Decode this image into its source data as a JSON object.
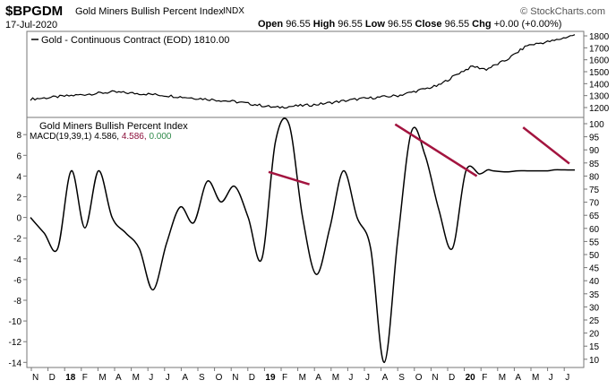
{
  "header": {
    "symbol": "$BPGDM",
    "title": "Gold Miners Bullish Percent Index",
    "exchange": "INDX",
    "date": "17-Jul-2020",
    "source": "© StockCharts.com",
    "open_label": "Open",
    "open": "96.55",
    "high_label": "High",
    "high": "96.55",
    "low_label": "Low",
    "low": "96.55",
    "close_label": "Close",
    "close": "96.55",
    "chg_label": "Chg",
    "chg": "+0.00 (+0.00%)"
  },
  "chart_data": [
    {
      "type": "line",
      "panel": "top",
      "legend": "Gold - Continuous Contract (EOD) 1810.00",
      "legend_placement": "top-left",
      "y_axis_side": "right",
      "ylim": [
        1150,
        1850
      ],
      "yticks": [
        1200,
        1300,
        1400,
        1500,
        1600,
        1700,
        1800
      ],
      "grid": false,
      "x": [
        0,
        3,
        6,
        9,
        12,
        15,
        18,
        21,
        24,
        27,
        30,
        31.5,
        32.5,
        33.5,
        35,
        36.5,
        38.5,
        40
      ],
      "values": [
        1270,
        1300,
        1330,
        1310,
        1280,
        1250,
        1200,
        1225,
        1270,
        1300,
        1385,
        1490,
        1545,
        1520,
        1600,
        1720,
        1760,
        1810
      ],
      "line_color": "#000000"
    },
    {
      "type": "line",
      "panel": "bottom",
      "legend_title": "Gold Miners Bullish Percent Index",
      "legend": "MACD(19,39,1) 4.586, 4.586, 0.000",
      "macd_label": "MACD(19,39,1) 4.586,",
      "signal_value": "4.586,",
      "hist_value": "0.000",
      "macd_color": "#000000",
      "signal_color": "#8b0e3a",
      "hist_color": "#2f8a4a",
      "legend_placement": "top-left",
      "left_axis": {
        "ylim": [
          -15,
          9
        ],
        "ticks": [
          8,
          6,
          4,
          2,
          0,
          -2,
          -4,
          -6,
          -8,
          -10,
          -12,
          -14
        ]
      },
      "right_axis": {
        "ylim": [
          5,
          105
        ],
        "ticks": [
          100,
          95,
          90,
          85,
          80,
          75,
          70,
          65,
          60,
          55,
          50,
          45,
          40,
          35,
          30,
          25,
          20,
          15,
          10
        ]
      },
      "x": [
        0,
        1,
        2,
        3,
        4,
        5,
        6,
        7,
        8,
        9,
        10,
        11,
        12,
        13,
        14,
        15,
        16,
        17,
        18,
        19,
        20,
        21,
        22,
        23,
        24,
        25,
        26,
        27,
        28,
        29,
        30,
        31,
        32,
        33,
        33.6,
        34,
        35,
        35.8,
        36.5,
        37,
        38,
        38.5,
        39,
        39.5,
        40
      ],
      "values": [
        0,
        -1.5,
        -3.0,
        4.5,
        -1.0,
        4.5,
        0,
        -1.5,
        -3.0,
        -7.0,
        -2.5,
        1.0,
        -0.5,
        3.5,
        1.5,
        3.0,
        0,
        -4.0,
        7.3,
        9.0,
        0,
        -5.5,
        -1.0,
        4.5,
        0,
        -3.0,
        -14.0,
        -2.0,
        8.3,
        6.0,
        0.8,
        -3.0,
        4.5,
        4.2,
        4.6,
        4.5,
        4.4,
        4.5,
        4.5,
        4.5,
        4.5,
        4.6,
        4.6,
        4.586,
        4.586
      ],
      "trendlines": [
        {
          "x": [
            17.5,
            20.5
          ],
          "values": [
            4.4,
            3.2
          ]
        },
        {
          "x": [
            26.8,
            32.8
          ],
          "values": [
            9.0,
            4.0
          ]
        },
        {
          "x": [
            36.2,
            39.6
          ],
          "values": [
            8.7,
            5.2
          ]
        }
      ],
      "trendline_color": "#a3143f",
      "grid": false
    }
  ],
  "xaxis": {
    "labels": [
      "N",
      "D",
      "18",
      "F",
      "M",
      "A",
      "M",
      "J",
      "J",
      "A",
      "S",
      "O",
      "N",
      "D",
      "19",
      "F",
      "M",
      "A",
      "M",
      "J",
      "J",
      "A",
      "S",
      "O",
      "N",
      "D",
      "20",
      "F",
      "M",
      "A",
      "M",
      "J",
      "J"
    ],
    "bold": [
      "18",
      "19",
      "20"
    ]
  }
}
